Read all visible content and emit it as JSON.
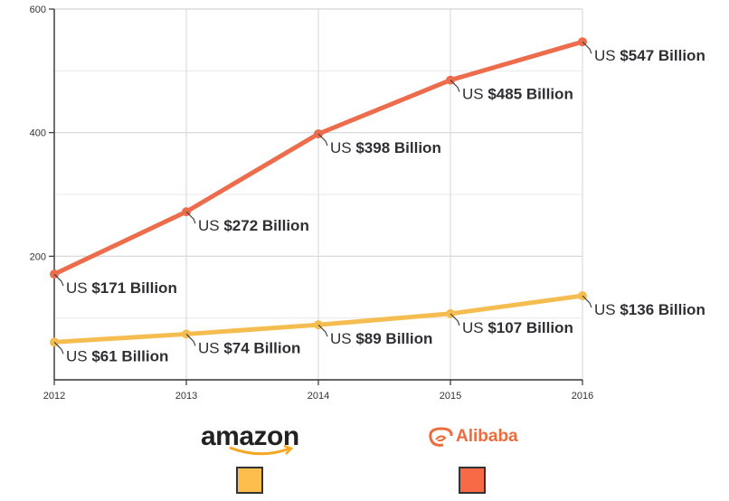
{
  "chart_data": {
    "type": "line",
    "x": [
      2012,
      2013,
      2014,
      2015,
      2016
    ],
    "x_tick_labels": [
      "2012",
      "2013",
      "2014",
      "2015",
      "2016"
    ],
    "ylim": [
      0,
      600
    ],
    "y_ticks": [
      200,
      400,
      600
    ],
    "y_tick_labels": [
      "200",
      "400",
      "600"
    ],
    "grid": true,
    "series": [
      {
        "name": "Alibaba",
        "color": "#ec6c4c",
        "values": [
          171,
          272,
          398,
          485,
          547
        ],
        "labels": [
          {
            "prefix": "US ",
            "value": "$171 Billion"
          },
          {
            "prefix": "US ",
            "value": "$272 Billion"
          },
          {
            "prefix": "US ",
            "value": "$398 Billion"
          },
          {
            "prefix": "US ",
            "value": "$485 Billion"
          },
          {
            "prefix": "US ",
            "value": "$547 Billion"
          }
        ]
      },
      {
        "name": "amazon",
        "color": "#f5bd4f",
        "values": [
          61,
          74,
          89,
          107,
          136
        ],
        "labels": [
          {
            "prefix": "US ",
            "value": "$61 Billion"
          },
          {
            "prefix": "US ",
            "value": "$74 Billion"
          },
          {
            "prefix": "US ",
            "value": "$89 Billion"
          },
          {
            "prefix": "US ",
            "value": "$107 Billion"
          },
          {
            "prefix": "US ",
            "value": "$136 Billion"
          }
        ]
      }
    ],
    "legend": {
      "placement": "bottom",
      "items": [
        {
          "name": "amazon",
          "swatch_color": "#fbbe4c"
        },
        {
          "name": "Alibaba",
          "swatch_color": "#f76a45"
        }
      ]
    }
  }
}
